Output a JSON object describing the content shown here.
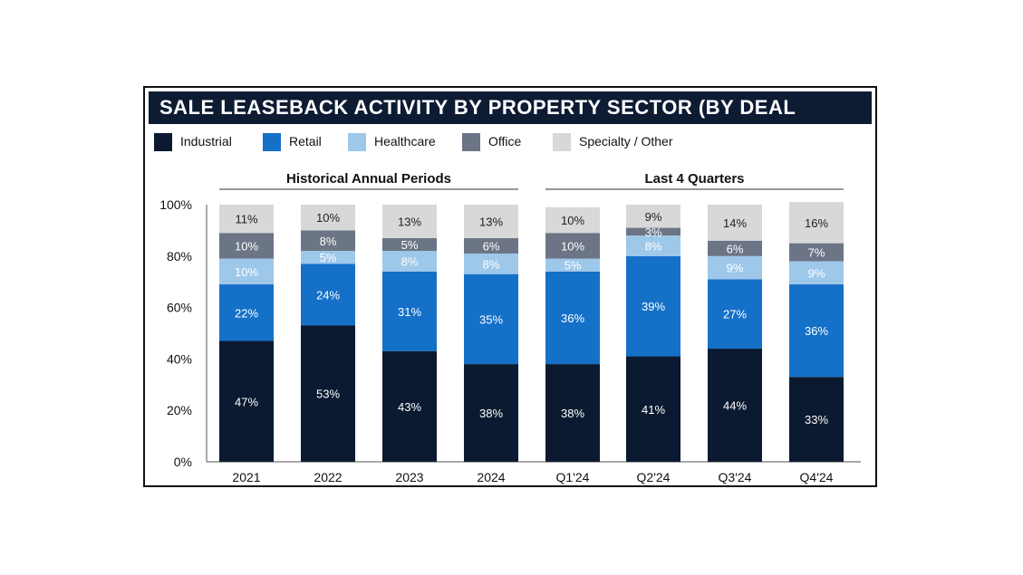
{
  "title": "SALE LEASEBACK ACTIVITY BY PROPERTY SECTOR (BY DEAL COUNT)",
  "colors": {
    "title_bg": "#0d1b33",
    "industrial": "#0b1a30",
    "retail": "#1570c8",
    "healthcare": "#9ec8ea",
    "office": "#6b7585",
    "specialty": "#d8d8d8"
  },
  "chart_data": {
    "type": "bar",
    "stacked": true,
    "ylim": [
      0,
      100
    ],
    "yticks": [
      "0%",
      "20%",
      "40%",
      "60%",
      "80%",
      "100%"
    ],
    "groups": [
      {
        "label": "Historical Annual Periods",
        "categories": [
          "2021",
          "2022",
          "2023",
          "2024"
        ]
      },
      {
        "label": "Last 4 Quarters",
        "categories": [
          "Q1'24",
          "Q2'24",
          "Q3'24",
          "Q4'24"
        ]
      }
    ],
    "categories": [
      "2021",
      "2022",
      "2023",
      "2024",
      "Q1'24",
      "Q2'24",
      "Q3'24",
      "Q4'24"
    ],
    "series": [
      {
        "name": "Industrial",
        "values": [
          47,
          53,
          43,
          38,
          38,
          41,
          44,
          33
        ],
        "labels": [
          "47%",
          "53%",
          "43%",
          "38%",
          "38%",
          "41%",
          "44%",
          "33%"
        ]
      },
      {
        "name": "Retail",
        "values": [
          22,
          24,
          31,
          35,
          36,
          39,
          27,
          36
        ],
        "labels": [
          "22%",
          "24%",
          "31%",
          "35%",
          "36%",
          "39%",
          "27%",
          "36%"
        ]
      },
      {
        "name": "Healthcare",
        "values": [
          10,
          5,
          8,
          8,
          5,
          8,
          9,
          9
        ],
        "labels": [
          "10%",
          "5%",
          "8%",
          "8%",
          "5%",
          "8%",
          "9%",
          "9%"
        ]
      },
      {
        "name": "Office",
        "values": [
          10,
          8,
          5,
          6,
          10,
          3,
          6,
          7
        ],
        "labels": [
          "10%",
          "8%",
          "5%",
          "6%",
          "10%",
          "3%",
          "6%",
          "7%"
        ]
      },
      {
        "name": "Specialty / Other",
        "values": [
          11,
          10,
          13,
          13,
          10,
          9,
          14,
          16
        ],
        "labels": [
          "11%",
          "10%",
          "13%",
          "13%",
          "10%",
          "9%",
          "14%",
          "16%"
        ]
      }
    ]
  }
}
